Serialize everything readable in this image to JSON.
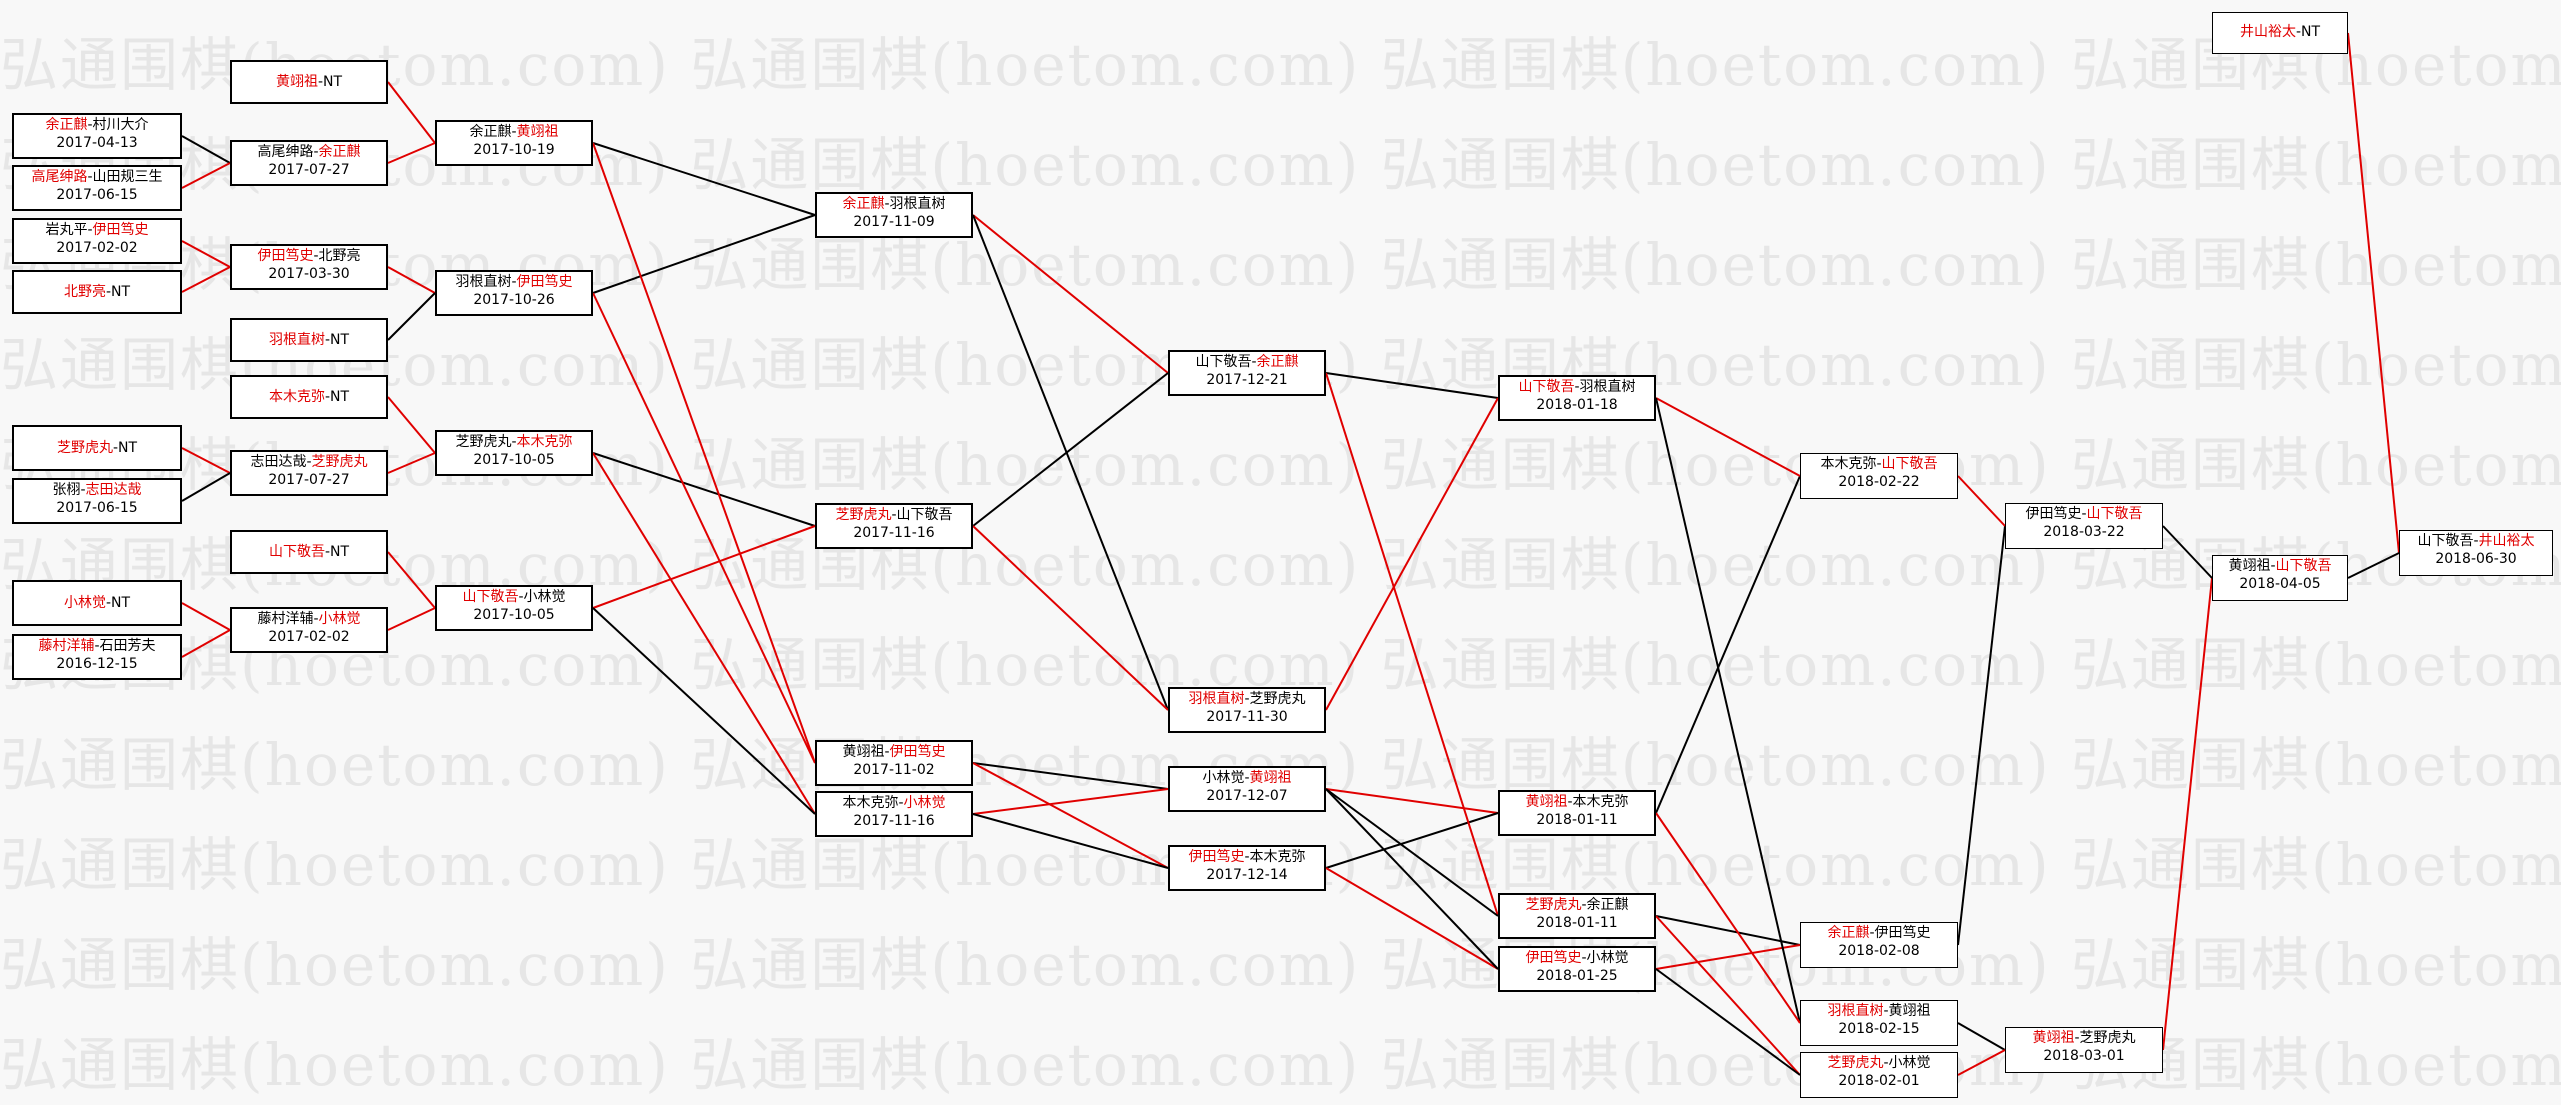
{
  "watermark": "弘通围棋(hoetom.com) 弘通围棋(hoetom.com) 弘通围棋(hoetom.com) 弘通围棋(hoetom.com)",
  "colors": {
    "winner": "#e00000",
    "loser": "#000000"
  },
  "nodes": [
    {
      "id": "r1a",
      "p1": "黄翊祖",
      "p2": "NT",
      "win": 1,
      "date": ""
    },
    {
      "id": "r1b",
      "p1": "余正麒",
      "p2": "村川大介",
      "win": 1,
      "date": "2017-04-13"
    },
    {
      "id": "r1c",
      "p1": "高尾绅路",
      "p2": "山田规三生",
      "win": 1,
      "date": "2017-06-15"
    },
    {
      "id": "r1d",
      "p1": "岩丸平",
      "p2": "伊田笃史",
      "win": 2,
      "date": "2017-02-02"
    },
    {
      "id": "r1e",
      "p1": "北野亮",
      "p2": "NT",
      "win": 1,
      "date": ""
    },
    {
      "id": "r1f",
      "p1": "芝野虎丸",
      "p2": "NT",
      "win": 1,
      "date": ""
    },
    {
      "id": "r1g",
      "p1": "张栩",
      "p2": "志田达哉",
      "win": 2,
      "date": "2017-06-15"
    },
    {
      "id": "r1h",
      "p1": "小林觉",
      "p2": "NT",
      "win": 1,
      "date": ""
    },
    {
      "id": "r1i",
      "p1": "藤村洋辅",
      "p2": "石田芳夫",
      "win": 1,
      "date": "2016-12-15"
    },
    {
      "id": "r2a",
      "p1": "高尾绅路",
      "p2": "余正麒",
      "win": 2,
      "date": "2017-07-27"
    },
    {
      "id": "r2b",
      "p1": "伊田笃史",
      "p2": "北野亮",
      "win": 1,
      "date": "2017-03-30"
    },
    {
      "id": "r2c",
      "p1": "羽根直树",
      "p2": "NT",
      "win": 1,
      "date": ""
    },
    {
      "id": "r2d",
      "p1": "本木克弥",
      "p2": "NT",
      "win": 1,
      "date": ""
    },
    {
      "id": "r2e",
      "p1": "志田达哉",
      "p2": "芝野虎丸",
      "win": 2,
      "date": "2017-07-27"
    },
    {
      "id": "r2f",
      "p1": "山下敬吾",
      "p2": "NT",
      "win": 1,
      "date": ""
    },
    {
      "id": "r2g",
      "p1": "藤村洋辅",
      "p2": "小林觉",
      "win": 2,
      "date": "2017-02-02"
    },
    {
      "id": "r3a",
      "p1": "余正麒",
      "p2": "黄翊祖",
      "win": 2,
      "date": "2017-10-19"
    },
    {
      "id": "r3b",
      "p1": "羽根直树",
      "p2": "伊田笃史",
      "win": 2,
      "date": "2017-10-26"
    },
    {
      "id": "r3c",
      "p1": "芝野虎丸",
      "p2": "本木克弥",
      "win": 2,
      "date": "2017-10-05"
    },
    {
      "id": "r3d",
      "p1": "山下敬吾",
      "p2": "小林觉",
      "win": 1,
      "date": "2017-10-05"
    },
    {
      "id": "r4a",
      "p1": "余正麒",
      "p2": "羽根直树",
      "win": 1,
      "date": "2017-11-09"
    },
    {
      "id": "r4b",
      "p1": "芝野虎丸",
      "p2": "山下敬吾",
      "win": 1,
      "date": "2017-11-16"
    },
    {
      "id": "r4c",
      "p1": "黄翊祖",
      "p2": "伊田笃史",
      "win": 2,
      "date": "2017-11-02"
    },
    {
      "id": "r4d",
      "p1": "本木克弥",
      "p2": "小林觉",
      "win": 2,
      "date": "2017-11-16"
    },
    {
      "id": "r5a",
      "p1": "山下敬吾",
      "p2": "余正麒",
      "win": 2,
      "date": "2017-12-21"
    },
    {
      "id": "r5b",
      "p1": "羽根直树",
      "p2": "芝野虎丸",
      "win": 1,
      "date": "2017-11-30"
    },
    {
      "id": "r5c",
      "p1": "小林觉",
      "p2": "黄翊祖",
      "win": 2,
      "date": "2017-12-07"
    },
    {
      "id": "r5d",
      "p1": "伊田笃史",
      "p2": "本木克弥",
      "win": 1,
      "date": "2017-12-14"
    },
    {
      "id": "r6a",
      "p1": "山下敬吾",
      "p2": "羽根直树",
      "win": 1,
      "date": "2018-01-18"
    },
    {
      "id": "r6b",
      "p1": "黄翊祖",
      "p2": "本木克弥",
      "win": 1,
      "date": "2018-01-11"
    },
    {
      "id": "r6c",
      "p1": "芝野虎丸",
      "p2": "余正麒",
      "win": 1,
      "date": "2018-01-11"
    },
    {
      "id": "r6d",
      "p1": "伊田笃史",
      "p2": "小林觉",
      "win": 1,
      "date": "2018-01-25"
    },
    {
      "id": "r7a",
      "p1": "本木克弥",
      "p2": "山下敬吾",
      "win": 2,
      "date": "2018-02-22"
    },
    {
      "id": "r7b",
      "p1": "余正麒",
      "p2": "伊田笃史",
      "win": 1,
      "date": "2018-02-08"
    },
    {
      "id": "r7c",
      "p1": "羽根直树",
      "p2": "黄翊祖",
      "win": 1,
      "date": "2018-02-15"
    },
    {
      "id": "r7d",
      "p1": "芝野虎丸",
      "p2": "小林觉",
      "win": 1,
      "date": "2018-02-01"
    },
    {
      "id": "r8a",
      "p1": "伊田笃史",
      "p2": "山下敬吾",
      "win": 2,
      "date": "2018-03-22"
    },
    {
      "id": "r8b",
      "p1": "黄翊祖",
      "p2": "芝野虎丸",
      "win": 1,
      "date": "2018-03-01"
    },
    {
      "id": "r9a",
      "p1": "井山裕太",
      "p2": "NT",
      "win": 1,
      "date": ""
    },
    {
      "id": "r9b",
      "p1": "黄翊祖",
      "p2": "山下敬吾",
      "win": 2,
      "date": "2018-04-05"
    },
    {
      "id": "r10",
      "p1": "山下敬吾",
      "p2": "井山裕太",
      "win": 2,
      "date": "2018-06-30"
    }
  ],
  "edges": [
    [
      "r1b",
      "r2a",
      0
    ],
    [
      "r1c",
      "r2a",
      1
    ],
    [
      "r1d",
      "r2b",
      1
    ],
    [
      "r1e",
      "r2b",
      1
    ],
    [
      "r1f",
      "r2e",
      1
    ],
    [
      "r1g",
      "r2e",
      0
    ],
    [
      "r1h",
      "r2g",
      1
    ],
    [
      "r1i",
      "r2g",
      1
    ],
    [
      "r1a",
      "r3a",
      1
    ],
    [
      "r2a",
      "r3a",
      1
    ],
    [
      "r2b",
      "r3b",
      1
    ],
    [
      "r2c",
      "r3b",
      0
    ],
    [
      "r2d",
      "r3c",
      1
    ],
    [
      "r2e",
      "r3c",
      1
    ],
    [
      "r2f",
      "r3d",
      1
    ],
    [
      "r2g",
      "r3d",
      1
    ],
    [
      "r3a",
      "r4a",
      0
    ],
    [
      "r3b",
      "r4a",
      0
    ],
    [
      "r3c",
      "r4b",
      0
    ],
    [
      "r3d",
      "r4b",
      1
    ],
    [
      "r3a",
      "r4c",
      1
    ],
    [
      "r3b",
      "r4c",
      1
    ],
    [
      "r3c",
      "r4d",
      1
    ],
    [
      "r3d",
      "r4d",
      0
    ],
    [
      "r4a",
      "r5a",
      1
    ],
    [
      "r4b",
      "r5a",
      0
    ],
    [
      "r4a",
      "r5b",
      0
    ],
    [
      "r4b",
      "r5b",
      1
    ],
    [
      "r4c",
      "r5c",
      0
    ],
    [
      "r4d",
      "r5c",
      1
    ],
    [
      "r4c",
      "r5d",
      1
    ],
    [
      "r4d",
      "r5d",
      0
    ],
    [
      "r5a",
      "r6a",
      0
    ],
    [
      "r5b",
      "r6a",
      1
    ],
    [
      "r5c",
      "r6b",
      1
    ],
    [
      "r5d",
      "r6b",
      0
    ],
    [
      "r5a",
      "r6c",
      1
    ],
    [
      "r5c",
      "r6c",
      0
    ],
    [
      "r5d",
      "r6d",
      1
    ],
    [
      "r5c",
      "r6d",
      0
    ],
    [
      "r6b",
      "r7a",
      0
    ],
    [
      "r6a",
      "r7a",
      1
    ],
    [
      "r6c",
      "r7b",
      0
    ],
    [
      "r6d",
      "r7b",
      1
    ],
    [
      "r6a",
      "r7c",
      0
    ],
    [
      "r6b",
      "r7c",
      1
    ],
    [
      "r6c",
      "r7d",
      1
    ],
    [
      "r6d",
      "r7d",
      0
    ],
    [
      "r7b",
      "r8a",
      0
    ],
    [
      "r7a",
      "r8a",
      1
    ],
    [
      "r7c",
      "r8b",
      0
    ],
    [
      "r7d",
      "r8b",
      1
    ],
    [
      "r8b",
      "r9b",
      1
    ],
    [
      "r8a",
      "r9b",
      0
    ],
    [
      "r9a",
      "r10",
      1
    ],
    [
      "r9b",
      "r10",
      0
    ]
  ]
}
